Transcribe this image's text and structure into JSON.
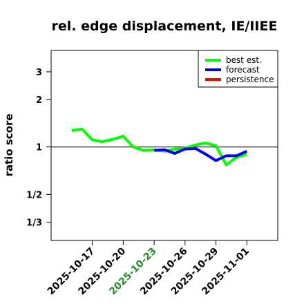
{
  "chart_data": {
    "type": "line",
    "title": "rel. edge displacement, IE/IIEE",
    "ylabel": "ratio score",
    "xlabel": "",
    "y_scale": "log",
    "ylim": [
      0.255,
      4.1
    ],
    "xlim": [
      "2025-10-13",
      "2025-11-04"
    ],
    "y_ticks": [
      {
        "value": 0.3333,
        "label": "1/3"
      },
      {
        "value": 0.5,
        "label": "1/2"
      },
      {
        "value": 1,
        "label": "1"
      },
      {
        "value": 2,
        "label": "2"
      },
      {
        "value": 3,
        "label": "3"
      }
    ],
    "x_ticks": [
      {
        "date": "2025-10-17",
        "label": "2025-10-17",
        "color": "#000000"
      },
      {
        "date": "2025-10-20",
        "label": "2025-10-20",
        "color": "#000000"
      },
      {
        "date": "2025-10-23",
        "label": "2025-10-23",
        "color": "#228B22"
      },
      {
        "date": "2025-10-26",
        "label": "2025-10-26",
        "color": "#000000"
      },
      {
        "date": "2025-10-29",
        "label": "2025-10-29",
        "color": "#000000"
      },
      {
        "date": "2025-11-01",
        "label": "2025-11-01",
        "color": "#000000"
      }
    ],
    "reference_line": 1,
    "grid": false,
    "legend_position": "top-right",
    "series": [
      {
        "name": "best est.",
        "color": "#00ff00",
        "points": [
          {
            "x": "2025-10-15",
            "y": 1.27
          },
          {
            "x": "2025-10-16",
            "y": 1.3
          },
          {
            "x": "2025-10-17",
            "y": 1.11
          },
          {
            "x": "2025-10-18",
            "y": 1.08
          },
          {
            "x": "2025-10-19",
            "y": 1.12
          },
          {
            "x": "2025-10-20",
            "y": 1.17
          },
          {
            "x": "2025-10-21",
            "y": 1.0
          },
          {
            "x": "2025-10-22",
            "y": 0.95
          },
          {
            "x": "2025-10-23",
            "y": 0.96
          },
          {
            "x": "2025-10-24",
            "y": 0.94
          },
          {
            "x": "2025-10-25",
            "y": 0.97
          },
          {
            "x": "2025-10-26",
            "y": 0.98
          },
          {
            "x": "2025-10-27",
            "y": 1.03
          },
          {
            "x": "2025-10-28",
            "y": 1.06
          },
          {
            "x": "2025-10-29",
            "y": 1.02
          },
          {
            "x": "2025-10-30",
            "y": 0.77
          },
          {
            "x": "2025-10-31",
            "y": 0.86
          },
          {
            "x": "2025-11-01",
            "y": 0.9
          }
        ]
      },
      {
        "name": "forecast",
        "color": "#0000ff",
        "points": [
          {
            "x": "2025-10-23",
            "y": 0.95
          },
          {
            "x": "2025-10-24",
            "y": 0.96
          },
          {
            "x": "2025-10-25",
            "y": 0.91
          },
          {
            "x": "2025-10-26",
            "y": 0.97
          },
          {
            "x": "2025-10-27",
            "y": 0.98
          },
          {
            "x": "2025-10-28",
            "y": 0.9
          },
          {
            "x": "2025-10-29",
            "y": 0.82
          },
          {
            "x": "2025-10-30",
            "y": 0.88
          },
          {
            "x": "2025-10-31",
            "y": 0.88
          },
          {
            "x": "2025-11-01",
            "y": 0.94
          }
        ]
      },
      {
        "name": "persistence",
        "color": "#ff0000",
        "points": []
      }
    ]
  }
}
